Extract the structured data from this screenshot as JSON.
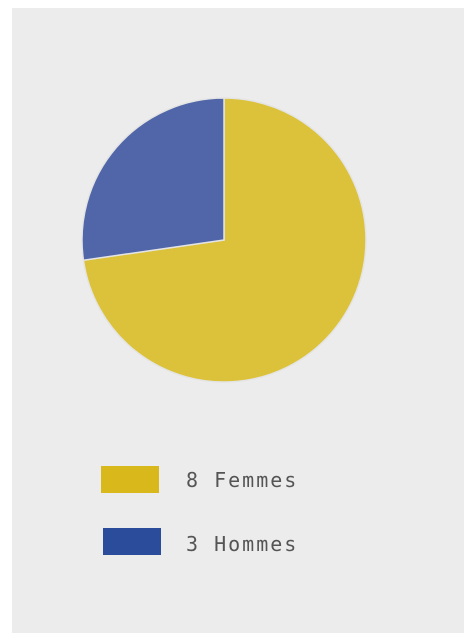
{
  "chart_data": {
    "type": "pie",
    "title": "",
    "slices": [
      {
        "label": "8 Femmes",
        "value": 8,
        "color": "#dcc23a"
      },
      {
        "label": "3 Hommes",
        "value": 3,
        "color": "#5066a8"
      }
    ],
    "legend": {
      "placement": "bottom",
      "entries": [
        {
          "label": "8 Femmes",
          "swatch_color": "#d8b81a"
        },
        {
          "label": "3 Hommes",
          "swatch_color": "#2b4b9b"
        }
      ]
    }
  }
}
